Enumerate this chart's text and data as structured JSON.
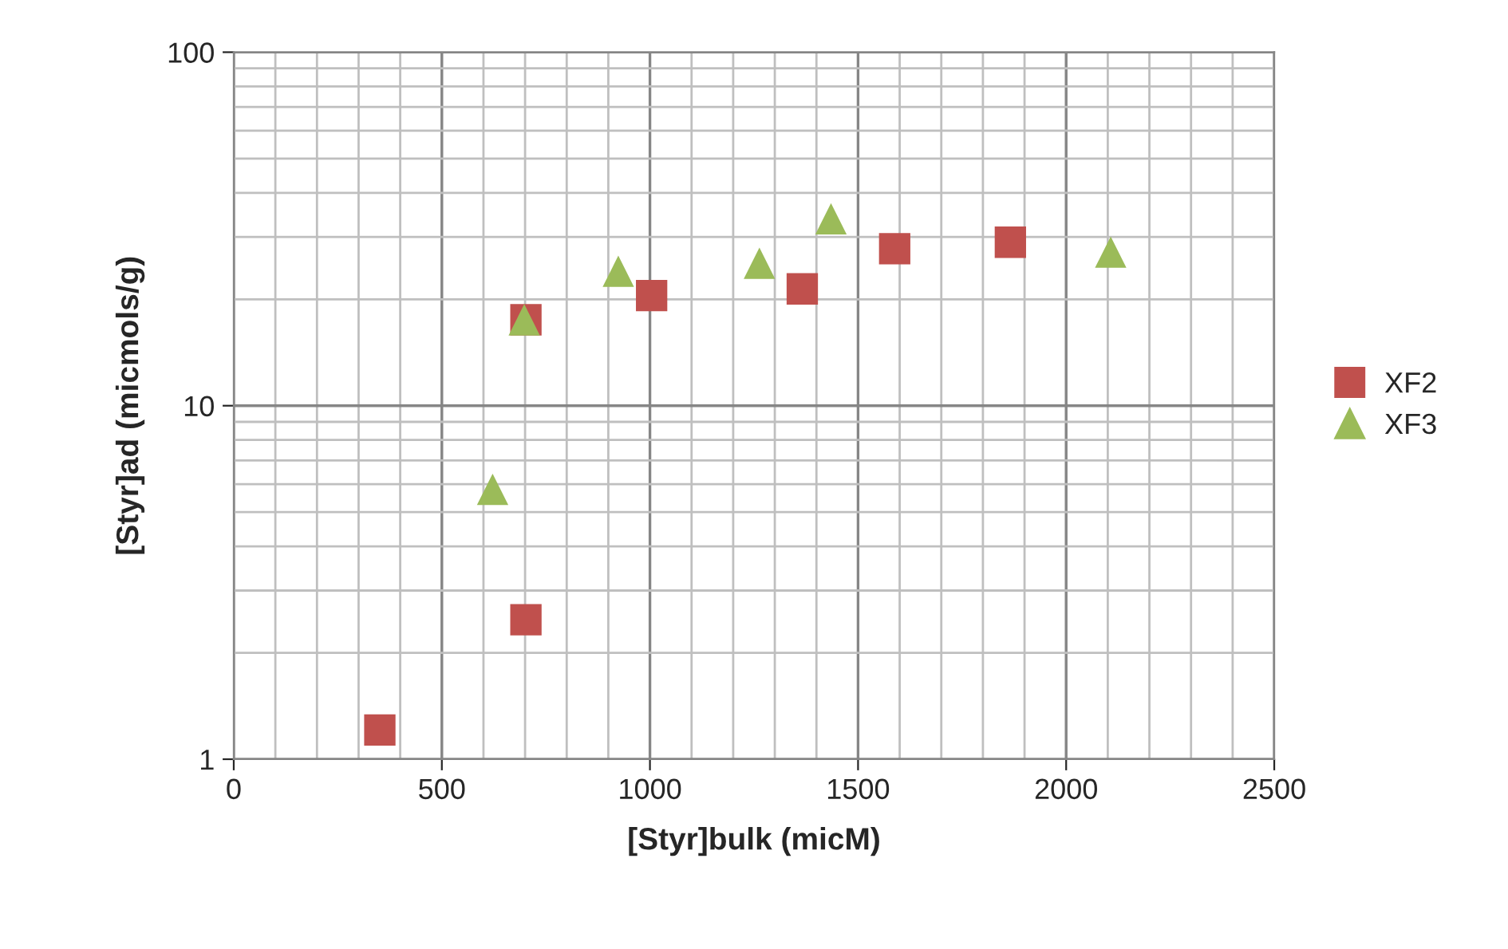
{
  "chart_data": {
    "type": "scatter",
    "xlabel": "[Styr]bulk (micM)",
    "ylabel": "[Styr]ad (micmols/g)",
    "log": "y",
    "grid": true,
    "legend": "right",
    "xlim": [
      0,
      2500
    ],
    "xticks": [
      0,
      500,
      1000,
      1500,
      2000,
      2500
    ],
    "ylim": [
      1,
      100
    ],
    "yticks": [
      1,
      10,
      100
    ],
    "series": [
      {
        "name": "XF2",
        "color": "#c0504d",
        "marker": "square",
        "x": [
          351,
          702,
          702,
          1004,
          1366,
          1588,
          1866
        ],
        "values": [
          1.21,
          17.5,
          2.48,
          20.5,
          21.4,
          27.8,
          29.0
        ]
      },
      {
        "name": "XF3",
        "color": "#9bbb59",
        "marker": "triangle",
        "x": [
          622,
          698,
          924,
          1263,
          1435,
          2107
        ],
        "values": [
          5.8,
          17.5,
          24.0,
          25.3,
          33.8,
          27.2
        ]
      }
    ]
  }
}
